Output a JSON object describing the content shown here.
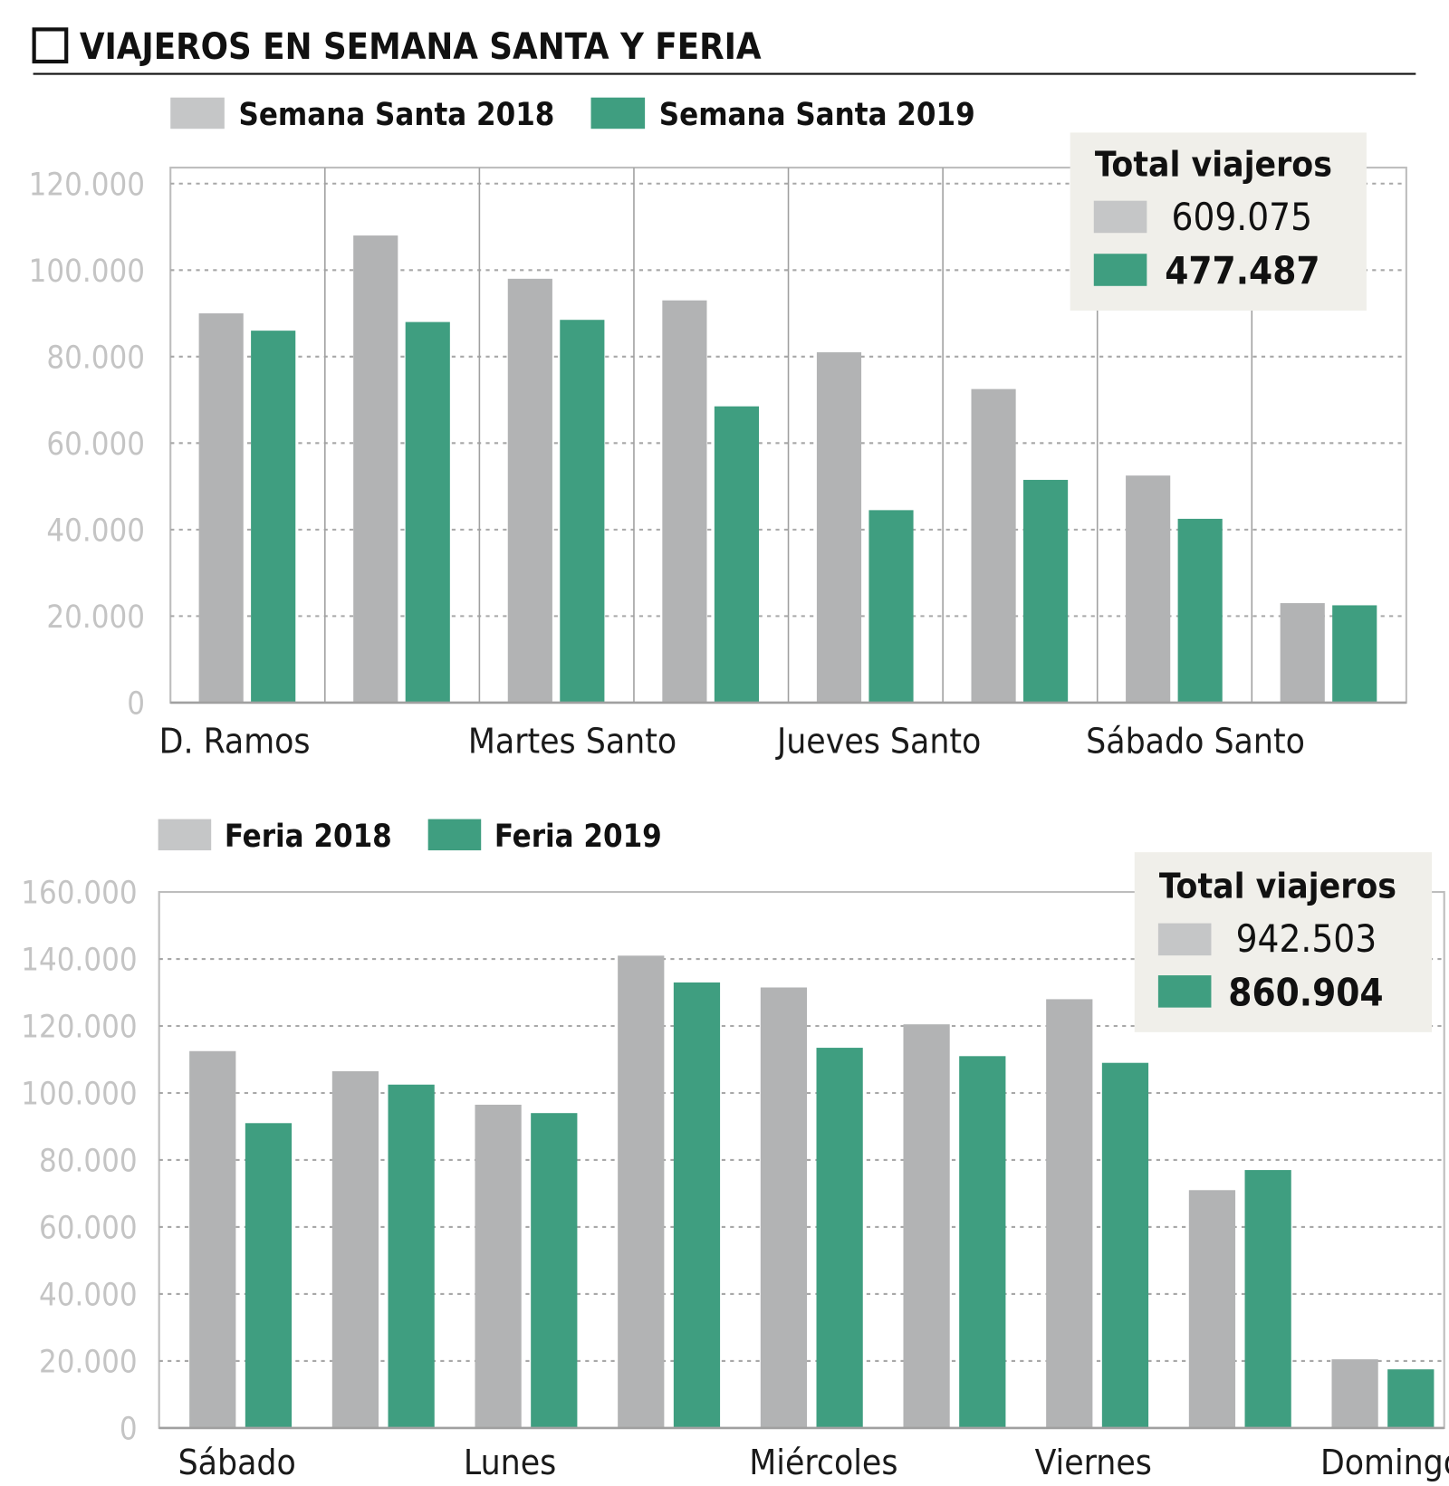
{
  "title": "VIAJEROS EN SEMANA SANTA Y FERIA",
  "colors": {
    "series_2018": "#b2b3b4",
    "series_2019": "#3f9e80",
    "legend_box_bg": "#f0efea",
    "tick_text": "#c4c4c4"
  },
  "chart_data": [
    {
      "type": "bar",
      "title": "",
      "categories": [
        "D. Ramos",
        "",
        "Martes Santo",
        "",
        "Jueves Santo",
        "",
        "Sábado Santo",
        ""
      ],
      "series": [
        {
          "name": "Semana Santa 2018",
          "values": [
            90000,
            108000,
            98000,
            93000,
            81000,
            72500,
            52500,
            23000
          ]
        },
        {
          "name": "Semana Santa 2019",
          "values": [
            86000,
            88000,
            88500,
            68500,
            44500,
            51500,
            42500,
            22500
          ]
        }
      ],
      "yticks": [
        "0",
        "20.000",
        "40.000",
        "60.000",
        "80.000",
        "100.000",
        "120.000"
      ],
      "ytick_values": [
        0,
        20000,
        40000,
        60000,
        80000,
        100000,
        120000
      ],
      "ylim": [
        0,
        123700
      ],
      "grid": true,
      "legend_placement": "top",
      "totals": {
        "title": "Total viajeros",
        "values": [
          "609.075",
          "477.487"
        ]
      }
    },
    {
      "type": "bar",
      "title": "",
      "categories": [
        "Sábado",
        "",
        "Lunes",
        "",
        "Miércoles",
        "",
        "Viernes",
        "",
        "Domingo"
      ],
      "series": [
        {
          "name": "Feria 2018",
          "values": [
            112500,
            106500,
            96500,
            141000,
            131500,
            120500,
            128000,
            71000,
            20500
          ]
        },
        {
          "name": "Feria 2019",
          "values": [
            91000,
            102500,
            94000,
            133000,
            113500,
            111000,
            109000,
            77000,
            17500
          ]
        }
      ],
      "yticks": [
        "0",
        "20.000",
        "40.000",
        "60.000",
        "80.000",
        "100.000",
        "120.000",
        "140.000",
        "160.000"
      ],
      "ytick_values": [
        0,
        20000,
        40000,
        60000,
        80000,
        100000,
        120000,
        140000,
        160000
      ],
      "ylim": [
        0,
        160000
      ],
      "grid": true,
      "legend_placement": "top",
      "totals": {
        "title": "Total viajeros",
        "values": [
          "942.503",
          "860.904"
        ]
      }
    }
  ]
}
